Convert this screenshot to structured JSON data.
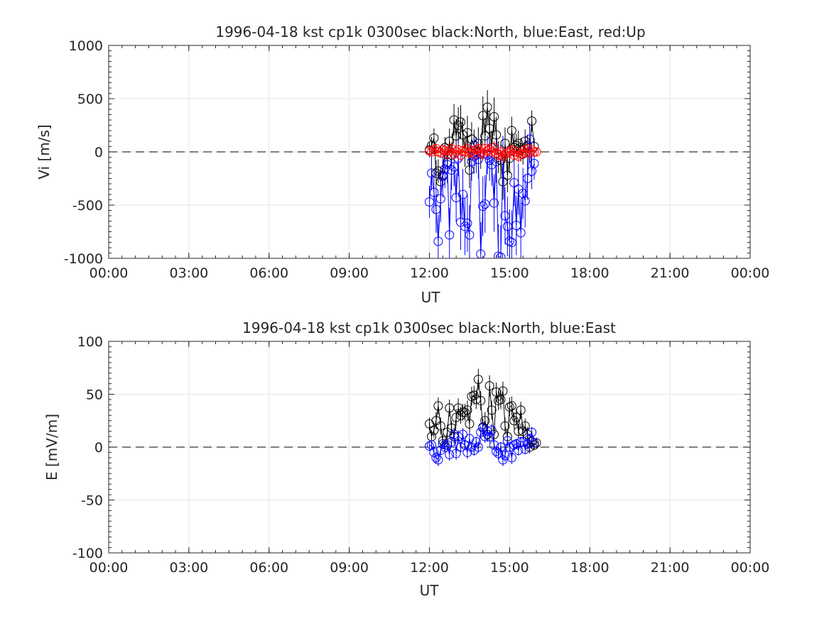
{
  "chart_data": [
    {
      "type": "scatter",
      "title": "1996-04-18 kst cp1k 0300sec black:North, blue:East, red:Up",
      "xlabel": "UT",
      "ylabel": "Vi [m/s]",
      "xlim": [
        0,
        24
      ],
      "ylim": [
        -1000,
        1000
      ],
      "grid": true,
      "x_tick_labels": [
        "00:00",
        "03:00",
        "06:00",
        "09:00",
        "12:00",
        "15:00",
        "18:00",
        "21:00",
        "00:00"
      ],
      "x_ticks": [
        0,
        3,
        6,
        9,
        12,
        15,
        18,
        21,
        24
      ],
      "y_ticks": [
        1000,
        500,
        0,
        -500,
        -1000
      ],
      "y_tick_labels": [
        "1000",
        "500",
        "0",
        "-500",
        "-1000"
      ],
      "reference_line": 0,
      "series": [
        {
          "name": "North",
          "color": "#000000",
          "x": [
            12.0,
            12.08,
            12.17,
            12.25,
            12.33,
            12.42,
            12.5,
            12.58,
            12.67,
            12.75,
            12.83,
            12.92,
            13.0,
            13.08,
            13.17,
            13.25,
            13.33,
            13.42,
            13.5,
            13.58,
            13.67,
            13.75,
            13.83,
            13.92,
            14.0,
            14.08,
            14.17,
            14.25,
            14.33,
            14.42,
            14.5,
            14.58,
            14.67,
            14.75,
            14.83,
            14.92,
            15.0,
            15.08,
            15.17,
            15.25,
            15.33,
            15.42,
            15.5,
            15.58,
            15.67,
            15.75,
            15.83,
            15.92
          ],
          "y": [
            20,
            60,
            130,
            -200,
            -180,
            -280,
            -220,
            40,
            -100,
            100,
            -30,
            300,
            150,
            250,
            280,
            160,
            0,
            180,
            -170,
            120,
            60,
            0,
            80,
            -20,
            340,
            150,
            420,
            220,
            40,
            330,
            160,
            -50,
            -80,
            -280,
            80,
            -220,
            -60,
            200,
            40,
            60,
            80,
            20,
            -20,
            100,
            60,
            -10,
            290,
            50
          ],
          "err": [
            70,
            80,
            90,
            120,
            110,
            140,
            130,
            100,
            110,
            120,
            100,
            150,
            160,
            170,
            160,
            150,
            140,
            160,
            170,
            160,
            150,
            140,
            150,
            140,
            180,
            170,
            160,
            170,
            160,
            180,
            170,
            150,
            160,
            170,
            150,
            160,
            140,
            130,
            120,
            110,
            120,
            110,
            100,
            110,
            100,
            90,
            100,
            80
          ]
        },
        {
          "name": "East",
          "color": "#0000ff",
          "x": [
            12.0,
            12.08,
            12.17,
            12.25,
            12.33,
            12.42,
            12.5,
            12.58,
            12.67,
            12.75,
            12.83,
            12.92,
            13.0,
            13.08,
            13.17,
            13.25,
            13.33,
            13.42,
            13.5,
            13.58,
            13.67,
            13.75,
            13.83,
            13.92,
            14.0,
            14.08,
            14.17,
            14.25,
            14.33,
            14.42,
            14.5,
            14.58,
            14.67,
            14.75,
            14.83,
            14.92,
            15.0,
            15.08,
            15.17,
            15.25,
            15.33,
            15.42,
            15.5,
            15.58,
            15.67,
            15.75,
            15.83,
            15.92
          ],
          "y": [
            -470,
            -200,
            -380,
            -540,
            -840,
            -440,
            -230,
            -160,
            -120,
            -780,
            -170,
            -140,
            -430,
            -60,
            -660,
            -400,
            -700,
            -670,
            -780,
            -90,
            -40,
            -30,
            -70,
            -960,
            -510,
            -490,
            -30,
            -80,
            -120,
            -480,
            -90,
            -980,
            -990,
            -40,
            -600,
            -700,
            -840,
            -850,
            -290,
            -690,
            -350,
            -760,
            -390,
            -460,
            -250,
            120,
            -180,
            -110
          ],
          "err": [
            150,
            160,
            200,
            220,
            250,
            220,
            200,
            180,
            170,
            250,
            190,
            180,
            230,
            170,
            260,
            240,
            270,
            270,
            280,
            180,
            170,
            170,
            180,
            300,
            280,
            270,
            180,
            190,
            200,
            270,
            200,
            300,
            300,
            190,
            270,
            280,
            300,
            300,
            220,
            280,
            240,
            280,
            240,
            250,
            200,
            150,
            170,
            150
          ]
        },
        {
          "name": "Up",
          "color": "#ff0000",
          "x": [
            12.0,
            12.08,
            12.17,
            12.25,
            12.33,
            12.42,
            12.5,
            12.58,
            12.67,
            12.75,
            12.83,
            12.92,
            13.0,
            13.08,
            13.17,
            13.25,
            13.33,
            13.42,
            13.5,
            13.58,
            13.67,
            13.75,
            13.83,
            13.92,
            14.0,
            14.08,
            14.17,
            14.25,
            14.33,
            14.42,
            14.5,
            14.58,
            14.67,
            14.75,
            14.83,
            14.92,
            15.0,
            15.08,
            15.17,
            15.25,
            15.33,
            15.42,
            15.5,
            15.58,
            15.67,
            15.75,
            15.83,
            15.92,
            16.0
          ],
          "y": [
            10,
            0,
            20,
            30,
            0,
            -10,
            20,
            10,
            -20,
            10,
            30,
            -20,
            0,
            20,
            -30,
            10,
            0,
            30,
            -10,
            10,
            -20,
            20,
            30,
            0,
            -20,
            30,
            10,
            20,
            0,
            40,
            -10,
            -30,
            0,
            -40,
            -20,
            -10,
            0,
            20,
            -30,
            0,
            -40,
            -20,
            10,
            -10,
            30,
            -10,
            20,
            0,
            0
          ],
          "err": [
            30,
            40,
            40,
            50,
            40,
            50,
            50,
            40,
            50,
            40,
            60,
            50,
            50,
            50,
            60,
            50,
            50,
            60,
            50,
            50,
            60,
            50,
            60,
            50,
            60,
            60,
            50,
            60,
            50,
            60,
            50,
            60,
            50,
            60,
            50,
            50,
            50,
            60,
            50,
            50,
            60,
            50,
            50,
            50,
            50,
            50,
            40,
            40,
            30
          ]
        }
      ]
    },
    {
      "type": "scatter",
      "title": "1996-04-18 kst cp1k 0300sec black:North, blue:East",
      "xlabel": "UT",
      "ylabel": "E [mV/m]",
      "xlim": [
        0,
        24
      ],
      "ylim": [
        -100,
        100
      ],
      "grid": true,
      "x_tick_labels": [
        "00:00",
        "03:00",
        "06:00",
        "09:00",
        "12:00",
        "15:00",
        "18:00",
        "21:00",
        "00:00"
      ],
      "x_ticks": [
        0,
        3,
        6,
        9,
        12,
        15,
        18,
        21,
        24
      ],
      "y_ticks": [
        100,
        50,
        0,
        -50,
        -100
      ],
      "y_tick_labels": [
        "100",
        "50",
        "0",
        "-50",
        "-100"
      ],
      "reference_line": 0,
      "series": [
        {
          "name": "North",
          "color": "#000000",
          "x": [
            12.0,
            12.08,
            12.17,
            12.25,
            12.33,
            12.42,
            12.5,
            12.58,
            12.67,
            12.75,
            12.83,
            12.92,
            13.0,
            13.08,
            13.17,
            13.25,
            13.33,
            13.42,
            13.5,
            13.58,
            13.67,
            13.75,
            13.83,
            13.92,
            14.0,
            14.08,
            14.17,
            14.25,
            14.33,
            14.42,
            14.5,
            14.58,
            14.67,
            14.75,
            14.83,
            14.92,
            15.0,
            15.08,
            15.17,
            15.25,
            15.33,
            15.42,
            15.5,
            15.58,
            15.67,
            15.75,
            15.83,
            15.92,
            16.0
          ],
          "y": [
            22,
            10,
            16,
            25,
            39,
            20,
            6,
            2,
            14,
            37,
            18,
            10,
            28,
            37,
            30,
            33,
            33,
            35,
            22,
            48,
            49,
            45,
            64,
            44,
            19,
            25,
            12,
            58,
            35,
            12,
            52,
            44,
            45,
            53,
            20,
            10,
            38,
            39,
            25,
            28,
            15,
            35,
            15,
            20,
            12,
            0,
            5,
            2,
            4
          ],
          "err": [
            6,
            6,
            7,
            8,
            8,
            8,
            6,
            6,
            7,
            8,
            7,
            7,
            8,
            9,
            8,
            8,
            8,
            9,
            8,
            9,
            9,
            9,
            10,
            9,
            8,
            8,
            7,
            10,
            9,
            7,
            9,
            9,
            9,
            9,
            8,
            7,
            9,
            9,
            8,
            8,
            7,
            8,
            7,
            7,
            7,
            6,
            6,
            5,
            5
          ]
        },
        {
          "name": "East",
          "color": "#0000ff",
          "x": [
            12.0,
            12.08,
            12.17,
            12.25,
            12.33,
            12.42,
            12.5,
            12.58,
            12.67,
            12.75,
            12.83,
            12.92,
            13.0,
            13.08,
            13.17,
            13.25,
            13.33,
            13.42,
            13.5,
            13.58,
            13.67,
            13.75,
            13.83,
            13.92,
            14.0,
            14.08,
            14.17,
            14.25,
            14.33,
            14.42,
            14.5,
            14.58,
            14.67,
            14.75,
            14.83,
            14.92,
            15.0,
            15.08,
            15.17,
            15.25,
            15.33,
            15.42,
            15.5,
            15.58,
            15.67,
            15.75,
            15.83,
            15.92
          ],
          "y": [
            1,
            2,
            -5,
            -10,
            -12,
            -3,
            3,
            0,
            2,
            -7,
            5,
            12,
            -6,
            10,
            0,
            12,
            2,
            -5,
            8,
            0,
            -3,
            5,
            0,
            14,
            18,
            10,
            15,
            10,
            16,
            2,
            -4,
            -6,
            0,
            -12,
            -8,
            6,
            0,
            -10,
            2,
            3,
            -3,
            5,
            5,
            -2,
            3,
            8,
            14,
            4
          ],
          "err": [
            4,
            4,
            5,
            6,
            6,
            5,
            5,
            5,
            5,
            6,
            5,
            6,
            6,
            6,
            5,
            6,
            5,
            6,
            6,
            5,
            5,
            5,
            5,
            6,
            7,
            6,
            6,
            6,
            6,
            5,
            5,
            6,
            5,
            6,
            6,
            5,
            5,
            6,
            5,
            5,
            5,
            5,
            5,
            5,
            5,
            5,
            5,
            4
          ]
        }
      ]
    }
  ]
}
